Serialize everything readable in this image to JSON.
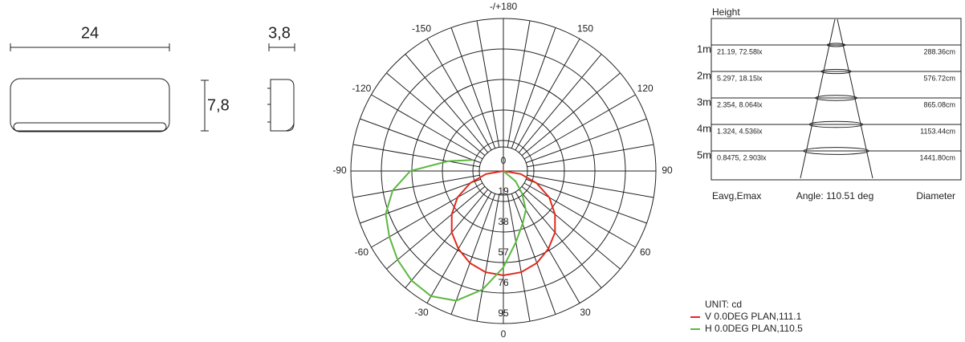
{
  "dimensions": {
    "width": "24",
    "depth": "3,8",
    "height": "7,8"
  },
  "chart_data": {
    "type": "polar",
    "rlim": [
      0,
      95
    ],
    "rticks": [
      0,
      19,
      38,
      57,
      76,
      95
    ],
    "angle_ticks": [
      {
        "value": 180,
        "label": "-/+180"
      },
      -150,
      150,
      -120,
      120,
      -90,
      90,
      -60,
      60,
      -30,
      30,
      0
    ],
    "unit": "UNIT: cd",
    "series": [
      {
        "name": "V 0.0DEG PLAN,111.1",
        "color": "#e02a1e",
        "angles": [
          -90,
          -80,
          -70,
          -60,
          -50,
          -40,
          -30,
          -20,
          -10,
          0,
          10,
          20,
          30,
          40,
          50,
          60,
          70,
          80,
          90
        ],
        "values": [
          0,
          11,
          22,
          33,
          42,
          50,
          56,
          61,
          64,
          65,
          64,
          61,
          56,
          50,
          42,
          33,
          22,
          11,
          0
        ]
      },
      {
        "name": "H 0.0DEG PLAN,110.5",
        "color": "#5cb840",
        "angles": [
          -110,
          -100,
          -90,
          -80,
          -70,
          -60,
          -50,
          -40,
          -30,
          -20,
          -10,
          0,
          10,
          20,
          30,
          40,
          50,
          60
        ],
        "values": [
          20,
          35,
          58,
          70,
          78,
          82,
          86,
          89,
          90,
          86,
          75,
          60,
          45,
          35,
          28,
          18,
          10,
          0
        ]
      }
    ]
  },
  "cone": {
    "title": "Height",
    "rows": [
      {
        "height": "1m",
        "illuminance": "21.19, 72.58lx",
        "diameter": "288.36cm"
      },
      {
        "height": "2m",
        "illuminance": "5.297, 18.15lx",
        "diameter": "576.72cm"
      },
      {
        "height": "3m",
        "illuminance": "2.354, 8.064lx",
        "diameter": "865.08cm"
      },
      {
        "height": "4m",
        "illuminance": "1.324, 4.536lx",
        "diameter": "1153.44cm"
      },
      {
        "height": "5m",
        "illuminance": "0.8475, 2.903lx",
        "diameter": "1441.80cm"
      }
    ],
    "footer": {
      "left": "Eavg,Emax",
      "middle": "Angle: 110.51 deg",
      "right": "Diameter"
    }
  }
}
